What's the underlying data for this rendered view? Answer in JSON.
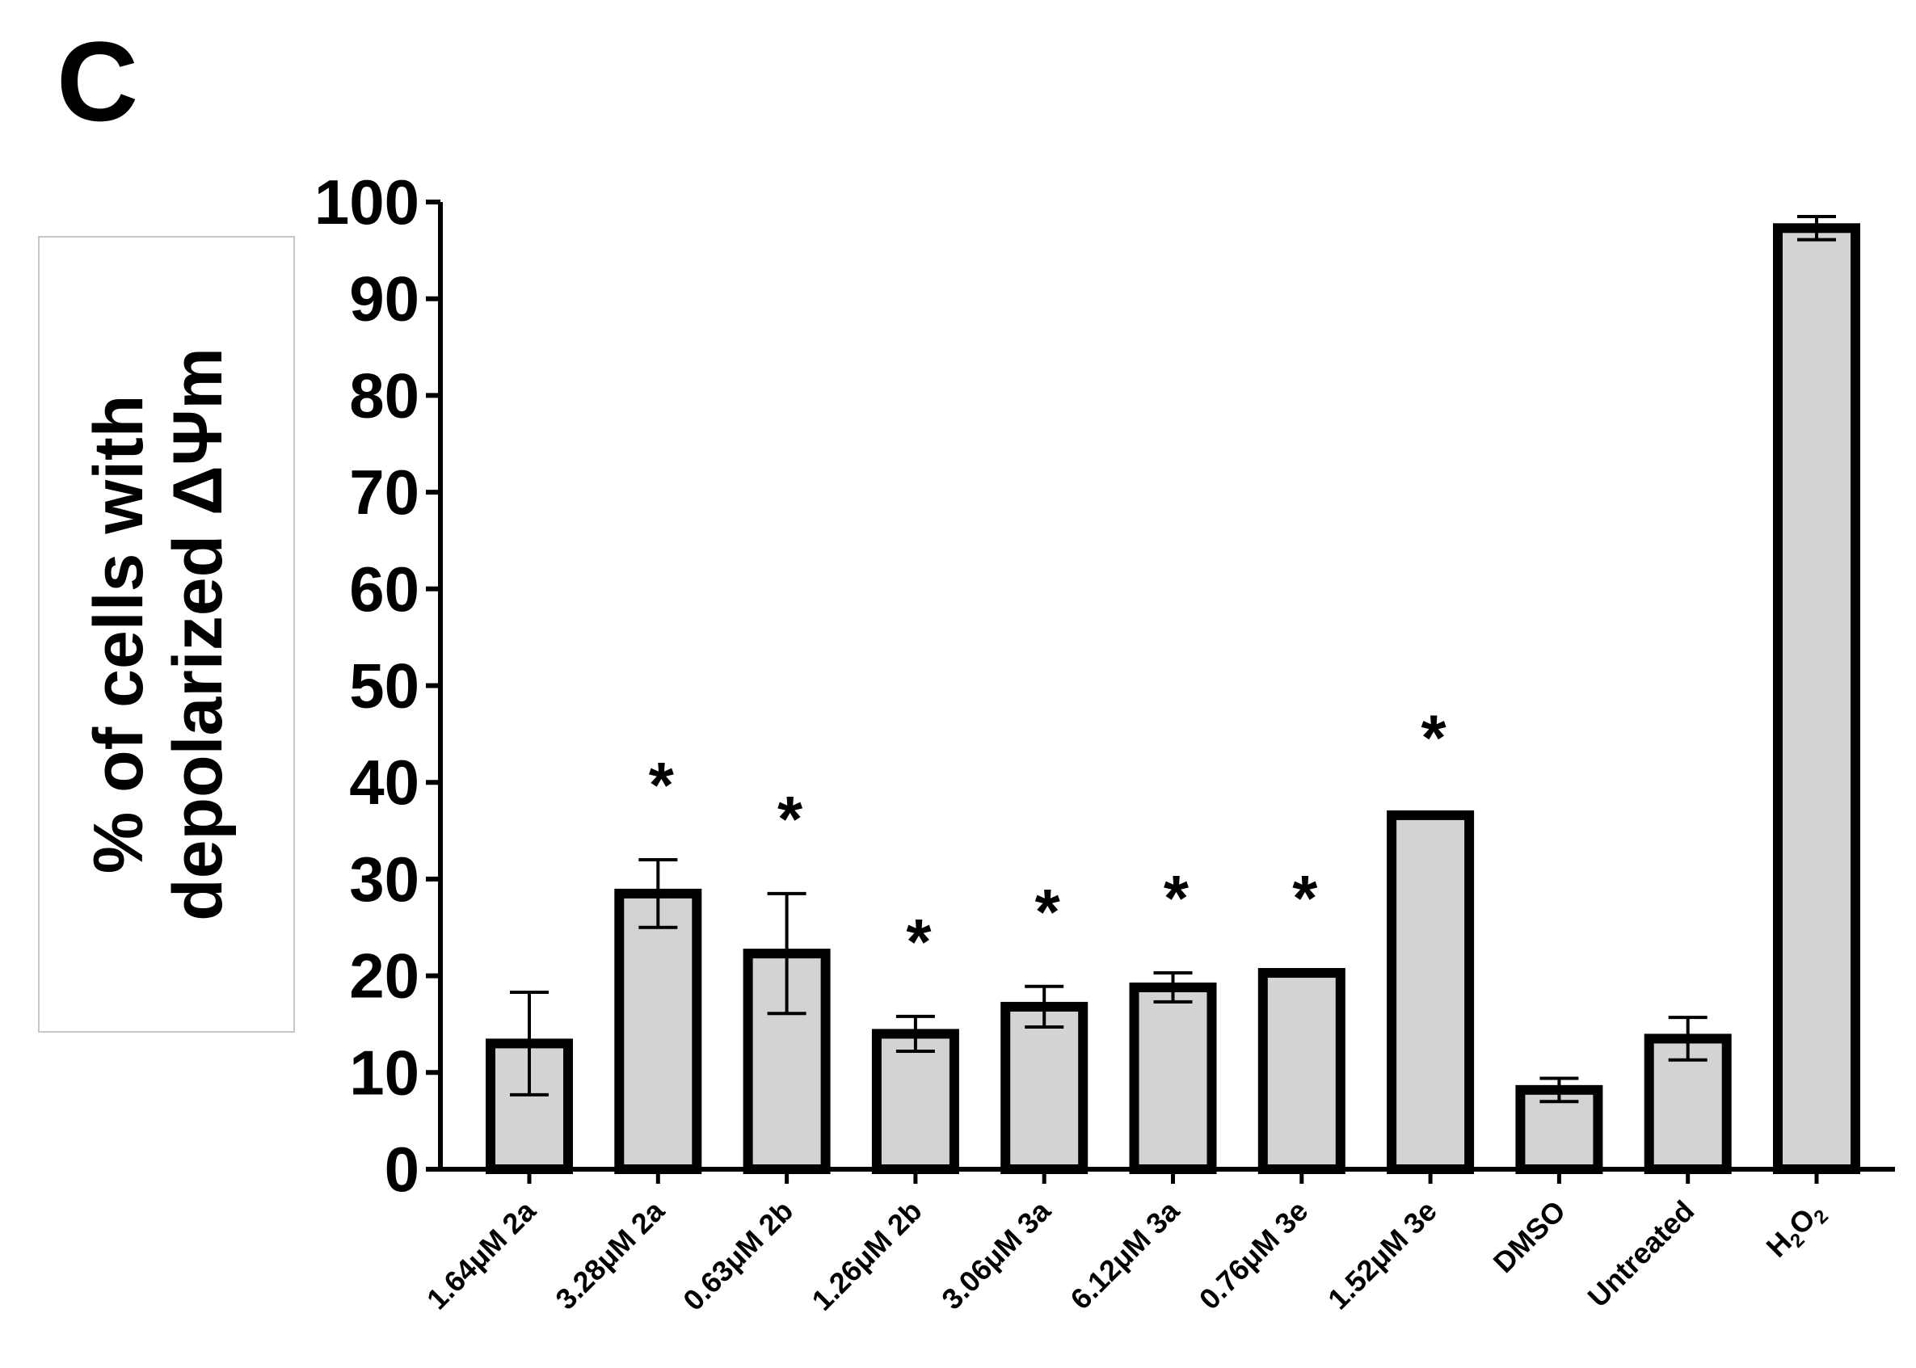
{
  "panel_letter": "C",
  "chart_data": {
    "type": "bar",
    "ylabel_lines": [
      "% of cells with",
      "depolarized ΔΨm"
    ],
    "xlabel": "",
    "ylim": [
      0,
      100
    ],
    "yticks": [
      "0",
      "10",
      "20",
      "30",
      "40",
      "50",
      "60",
      "70",
      "80",
      "90",
      "100"
    ],
    "categories": [
      "1.64μM 2a",
      "3.28μM 2a",
      "0.63μM 2b",
      "1.26μM 2b",
      "3.06μM 3a",
      "6.12μM 3a",
      "0.76μM 3e",
      "1.52μM 3e",
      "DMSO",
      "Untreated",
      "H2O2"
    ],
    "values": [
      13,
      28.5,
      22.3,
      14,
      16.8,
      18.8,
      20.3,
      36.6,
      8.2,
      13.5,
      97.3
    ],
    "error": [
      5.3,
      3.5,
      6.2,
      1.8,
      2.1,
      1.5,
      0,
      0.3,
      1.2,
      2.2,
      1.2
    ],
    "significance": [
      "",
      "*",
      "*",
      "*",
      "*",
      "*",
      "*",
      "*",
      "",
      "",
      ""
    ],
    "colors": {
      "bar_fill": "#d3d3d3",
      "bar_stroke": "#000000",
      "axis": "#000000"
    },
    "grid": false,
    "legend": "none"
  }
}
